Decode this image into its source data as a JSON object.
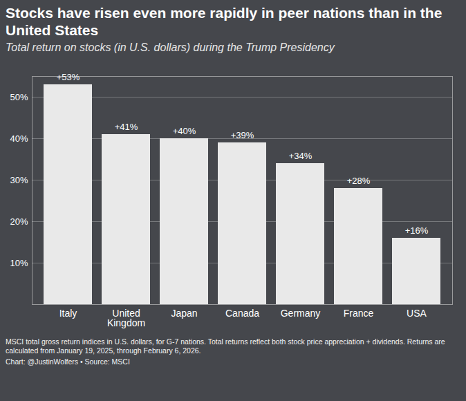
{
  "chart_data": {
    "type": "bar",
    "title": "Stocks have risen even more rapidly in peer nations than in the United States",
    "subtitle": "Total return on stocks (in U.S. dollars) during the Trump Presidency",
    "categories": [
      "Italy",
      "United Kingdom",
      "Japan",
      "Canada",
      "Germany",
      "France",
      "USA"
    ],
    "values": [
      53,
      41,
      40,
      39,
      34,
      28,
      16
    ],
    "value_labels": [
      "+53%",
      "+41%",
      "+40%",
      "+39%",
      "+34%",
      "+28%",
      "+16%"
    ],
    "data_labels": true,
    "color": "#e9e9e9",
    "ylim": [
      0,
      55
    ],
    "yticks": [
      {
        "value": 10,
        "label": "10%"
      },
      {
        "value": 20,
        "label": "20%"
      },
      {
        "value": 30,
        "label": "30%"
      },
      {
        "value": 40,
        "label": "40%"
      },
      {
        "value": 50,
        "label": "50%"
      }
    ],
    "grid": true,
    "caption": "MSCI total gross return indices in U.S. dollars, for G-7 nations. Total returns reflect both stock price appreciation + dividends. Returns are calculated from January 19, 2025, through February 6, 2026.",
    "credit": "Chart: @JustinWolfers • Source: MSCI"
  }
}
